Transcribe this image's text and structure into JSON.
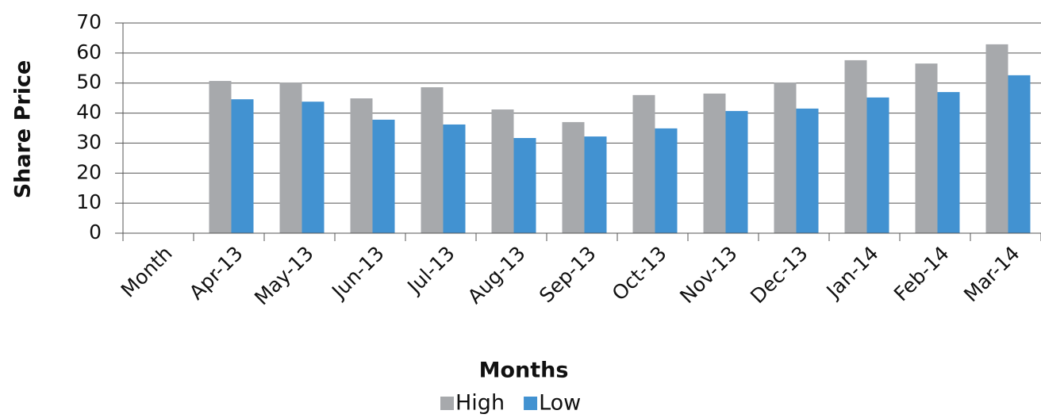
{
  "chart_data": {
    "type": "bar",
    "x_label": "Months",
    "y_label": "Share Price",
    "categories": [
      "Month",
      "Apr-13",
      "May-13",
      "Jun-13",
      "Jul-13",
      "Aug-13",
      "Sep-13",
      "Oct-13",
      "Nov-13",
      "Dec-13",
      "Jan-14",
      "Feb-14",
      "Mar-14"
    ],
    "series": [
      {
        "name": "High",
        "color": "#a7a9ac",
        "values": [
          null,
          50.7,
          50.2,
          44.9,
          48.6,
          41.2,
          37.0,
          46.0,
          46.5,
          50.2,
          57.6,
          56.5,
          62.9
        ]
      },
      {
        "name": "Low",
        "color": "#4292d1",
        "values": [
          null,
          44.6,
          43.8,
          37.8,
          36.2,
          31.7,
          32.2,
          34.9,
          40.7,
          41.5,
          45.2,
          47.0,
          52.6
        ]
      }
    ],
    "ylim": [
      0,
      70
    ],
    "yticks": [
      0,
      10,
      20,
      30,
      40,
      50,
      60,
      70
    ],
    "grid": true,
    "legend": "bottom"
  }
}
